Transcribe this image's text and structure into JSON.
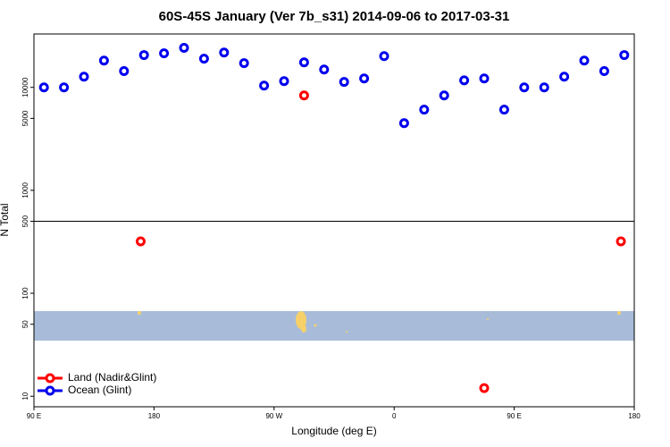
{
  "chart_data": {
    "type": "scatter",
    "title": "60S-45S January (Ver 7b_s31)   2014-09-06 to 2017-03-31",
    "xlabel": "Longitude (deg E)",
    "ylabel": "N Total",
    "log_y": true,
    "xlim": [
      90,
      540
    ],
    "ylim": [
      7.9,
      33000
    ],
    "xticks": [
      {
        "value": 90,
        "label": "90 E"
      },
      180,
      {
        "value": 270,
        "label": "90 W"
      },
      {
        "value": 360,
        "label": "0"
      },
      {
        "value": 450,
        "label": "90 E"
      },
      {
        "value": 540,
        "label": "180"
      }
    ],
    "yticks": [
      10,
      50,
      100,
      500,
      1000,
      5000,
      10000
    ],
    "hline": 500,
    "legend": "bottom-left",
    "series": [
      {
        "name": "Land (Nadir&Glint)",
        "color": "#ff0000",
        "x": [
          170,
          292.5,
          427.5,
          530
        ],
        "values": [
          319,
          8350,
          12,
          319
        ]
      },
      {
        "name": "Ocean (Glint)",
        "color": "#0000ee",
        "x": [
          97.5,
          112.5,
          127.5,
          142.5,
          157.5,
          172.5,
          187.5,
          202.5,
          217.5,
          232.5,
          247.5,
          262.5,
          277.5,
          292.5,
          307.5,
          322.5,
          337.5,
          352.5,
          367.5,
          382.5,
          397.5,
          412.5,
          427.5,
          442.5,
          457.5,
          472.5,
          487.5,
          502.5,
          517.5,
          532.5
        ],
        "values": [
          10000,
          10000,
          12700,
          18200,
          14400,
          20600,
          21400,
          24200,
          19000,
          21800,
          17200,
          10400,
          11500,
          17500,
          14900,
          11300,
          12200,
          20100,
          4490,
          6070,
          8350,
          11700,
          12200,
          6070,
          10000,
          10000,
          12700,
          18200,
          14400,
          20600
        ]
      }
    ]
  }
}
